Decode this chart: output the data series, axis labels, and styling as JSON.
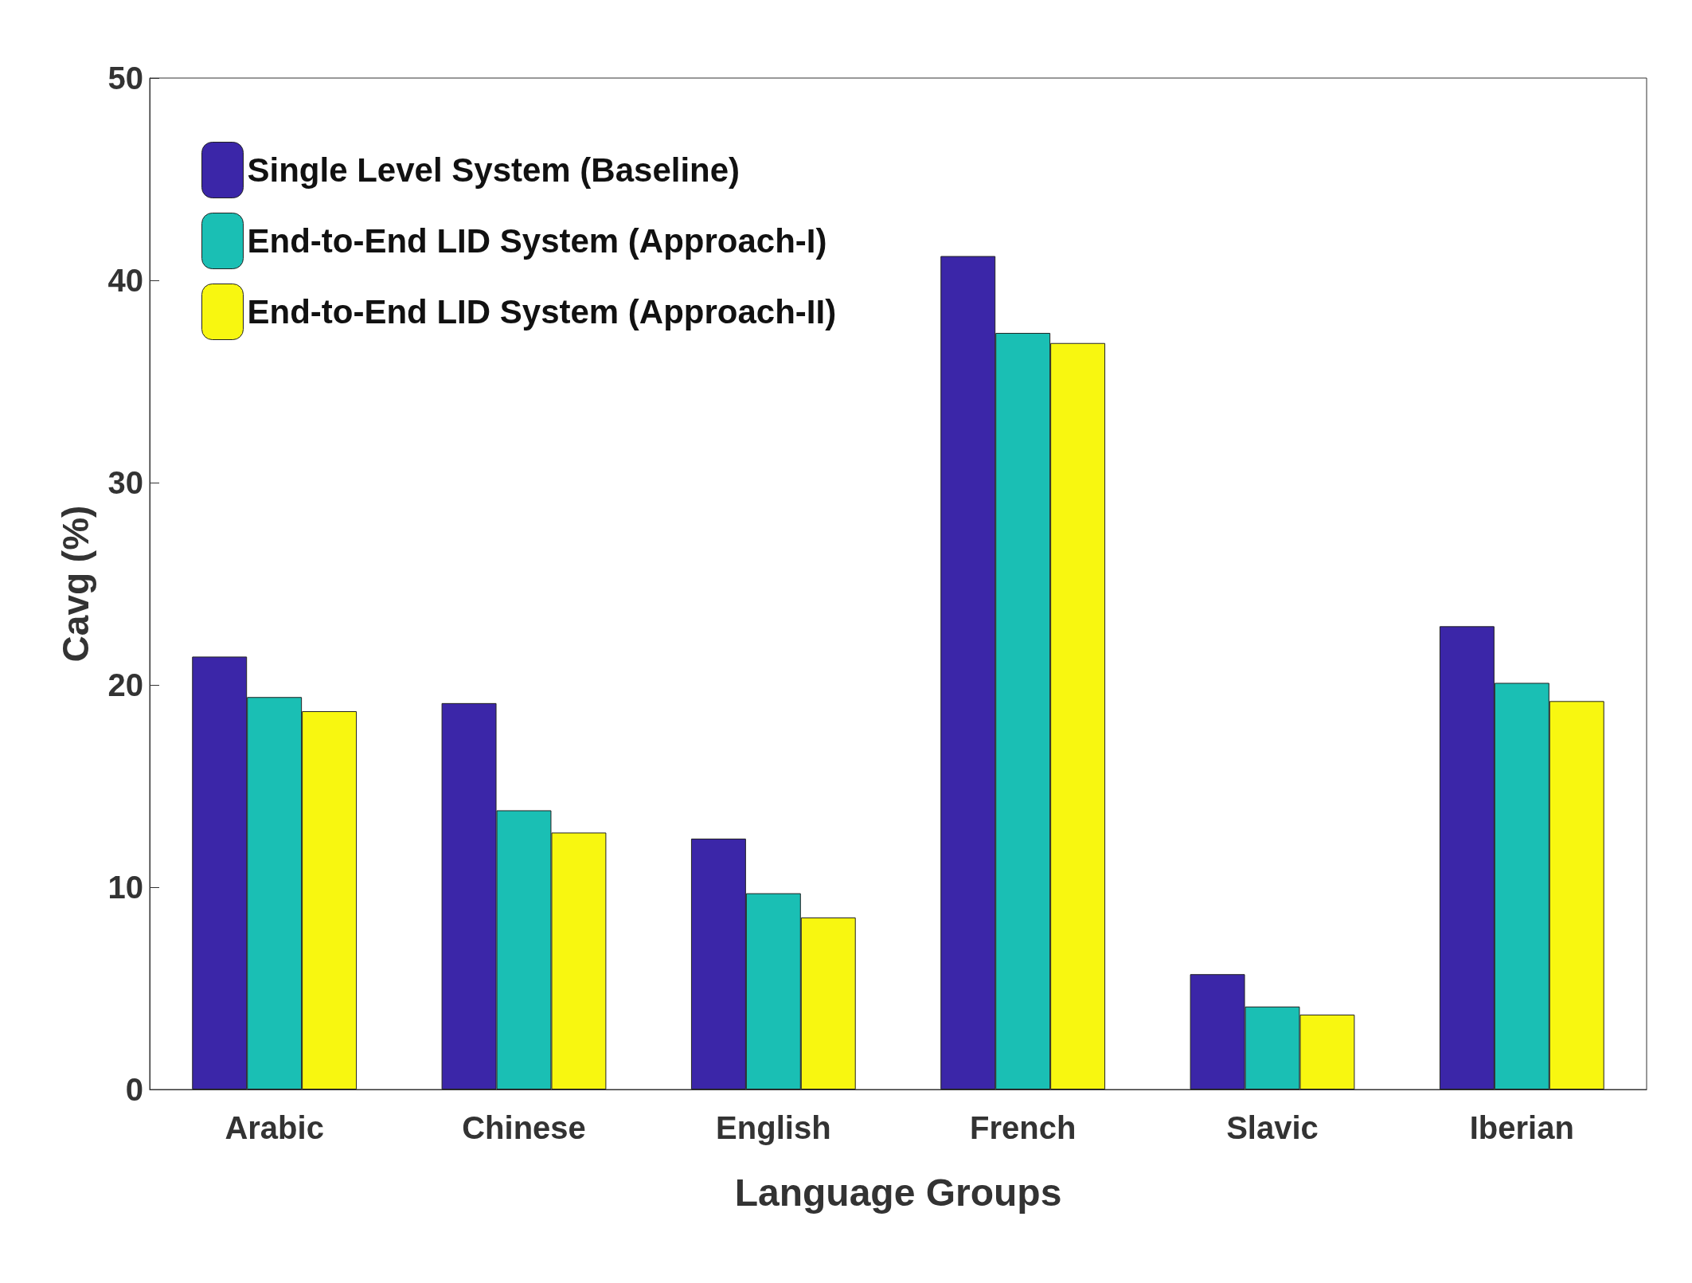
{
  "chart_data": {
    "type": "bar",
    "xlabel": "Language Groups",
    "ylabel": "Cavg (%)",
    "categories": [
      "Arabic",
      "Chinese",
      "English",
      "French",
      "Slavic",
      "Iberian"
    ],
    "series": [
      {
        "name": "Single Level System (Baseline)",
        "color": "#3b26a8",
        "values": [
          21.4,
          19.1,
          12.4,
          41.2,
          5.7,
          22.9
        ]
      },
      {
        "name": "End-to-End LID System (Approach-I)",
        "color": "#1abfb4",
        "values": [
          19.4,
          13.8,
          9.7,
          37.4,
          4.1,
          20.1
        ]
      },
      {
        "name": "End-to-End LID System (Approach-II)",
        "color": "#f8f710",
        "values": [
          18.7,
          12.7,
          8.5,
          36.9,
          3.7,
          19.2
        ]
      }
    ],
    "ylim": [
      0,
      50
    ],
    "yticks": [
      0,
      10,
      20,
      30,
      40,
      50
    ],
    "grid": false,
    "legend": "top left"
  }
}
